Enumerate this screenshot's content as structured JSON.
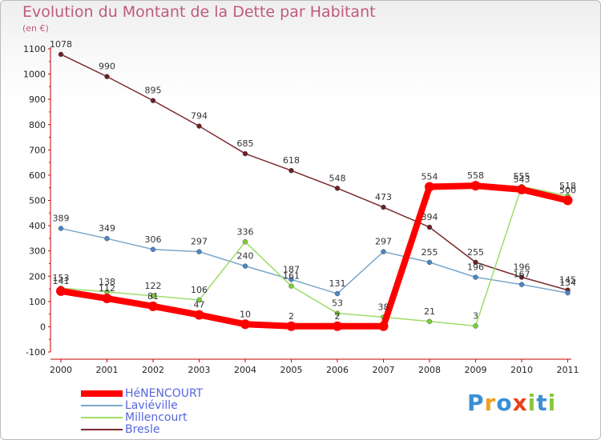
{
  "title": "Evolution du Montant de la Dette par Habitant",
  "unit": "(en €)",
  "logo": {
    "letters": [
      {
        "ch": "P",
        "color": "#3a8fd6"
      },
      {
        "ch": "r",
        "color": "#f0a020"
      },
      {
        "ch": "o",
        "color": "#3a8fd6"
      },
      {
        "ch": "x",
        "color": "#e8421a"
      },
      {
        "ch": "i",
        "color": "#8cc63e"
      },
      {
        "ch": "t",
        "color": "#3a8fd6"
      },
      {
        "ch": "i",
        "color": "#8cc63e"
      }
    ]
  },
  "chart_data": {
    "type": "line",
    "categories": [
      "2000",
      "2001",
      "2002",
      "2003",
      "2004",
      "2005",
      "2006",
      "2007",
      "2008",
      "2009",
      "2010",
      "2011"
    ],
    "ylim": [
      -100,
      1100
    ],
    "yticks": [
      "-100",
      "0",
      "100",
      "200",
      "300",
      "400",
      "500",
      "600",
      "700",
      "800",
      "900",
      "1000",
      "1100"
    ],
    "grid": false,
    "legend_position": "bottom-left",
    "series": [
      {
        "name": "Bresle",
        "color": "#7b2a2e",
        "dot": "#6b1f23",
        "values": [
          1078,
          990,
          895,
          794,
          685,
          618,
          548,
          473,
          394,
          255,
          196,
          145
        ],
        "labels": [
          "1078",
          "990",
          "895",
          "794",
          "685",
          "618",
          "548",
          "473",
          "394",
          "255",
          "196",
          "145"
        ]
      },
      {
        "name": "Laviéville",
        "color": "#7aa7cc",
        "dot": "#4a86c4",
        "values": [
          389,
          349,
          306,
          297,
          240,
          187,
          131,
          297,
          255,
          196,
          167,
          134
        ],
        "labels": [
          "389",
          "349",
          "306",
          "297",
          "240",
          "187",
          "131",
          "297",
          "255",
          "196",
          "167",
          "134"
        ]
      },
      {
        "name": "Millencourt",
        "color": "#9ddc6a",
        "dot": "#7ccc3a",
        "values": [
          153,
          138,
          122,
          106,
          336,
          161,
          53,
          38,
          21,
          3,
          555,
          518
        ],
        "labels": [
          "153",
          "138",
          "122",
          "106",
          "336",
          "161",
          "53",
          "38",
          "21",
          "3",
          "555",
          "518"
        ]
      },
      {
        "name": "HéNENCOURT",
        "color": "#ff0000",
        "dot": "#ff0000",
        "values": [
          141,
          112,
          81,
          47,
          10,
          2,
          2,
          2,
          554,
          558,
          543,
          500
        ],
        "labels": [
          "141",
          "112",
          "81",
          "47",
          "10",
          "2",
          "2",
          "",
          "554",
          "558",
          "543",
          "500"
        ]
      }
    ],
    "legend_order": [
      "HéNENCOURT",
      "Laviéville",
      "Millencourt",
      "Bresle"
    ]
  }
}
